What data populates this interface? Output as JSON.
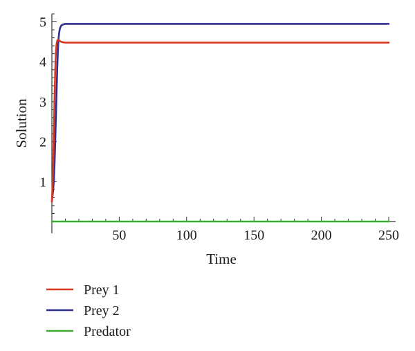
{
  "chart_data": {
    "type": "line",
    "title": "",
    "xlabel": "Time",
    "ylabel": "Solution",
    "xlim": [
      0,
      250
    ],
    "ylim": [
      0,
      5.2
    ],
    "xticks": [
      50,
      100,
      150,
      200,
      250
    ],
    "yticks": [
      1,
      2,
      3,
      4,
      5
    ],
    "grid": false,
    "legend_position": "bottom-left",
    "series": [
      {
        "name": "Prey 1",
        "color": "#d8381e",
        "x": [
          0,
          0.5,
          1,
          1.5,
          2,
          2.5,
          3,
          3.5,
          4,
          4.5,
          5,
          6,
          7,
          8,
          10,
          15,
          20,
          250
        ],
        "y": [
          0.5,
          0.9,
          1.5,
          2.3,
          3.1,
          3.8,
          4.25,
          4.45,
          4.53,
          4.55,
          4.54,
          4.52,
          4.5,
          4.49,
          4.48,
          4.48,
          4.48,
          4.48
        ]
      },
      {
        "name": "Prey 2",
        "color": "#2e2e8e",
        "x": [
          0,
          1,
          1.5,
          2,
          2.5,
          3,
          3.5,
          4,
          4.5,
          5,
          5.5,
          6,
          7,
          8,
          9,
          10,
          12,
          15,
          20,
          250
        ],
        "y": [
          0.5,
          0.8,
          1.05,
          1.45,
          2.0,
          2.6,
          3.25,
          3.85,
          4.3,
          4.6,
          4.75,
          4.84,
          4.91,
          4.93,
          4.94,
          4.95,
          4.95,
          4.95,
          4.95,
          4.95
        ]
      },
      {
        "name": "Predator",
        "color": "#3daa32",
        "x": [
          0,
          250
        ],
        "y": [
          0,
          0
        ]
      }
    ]
  }
}
